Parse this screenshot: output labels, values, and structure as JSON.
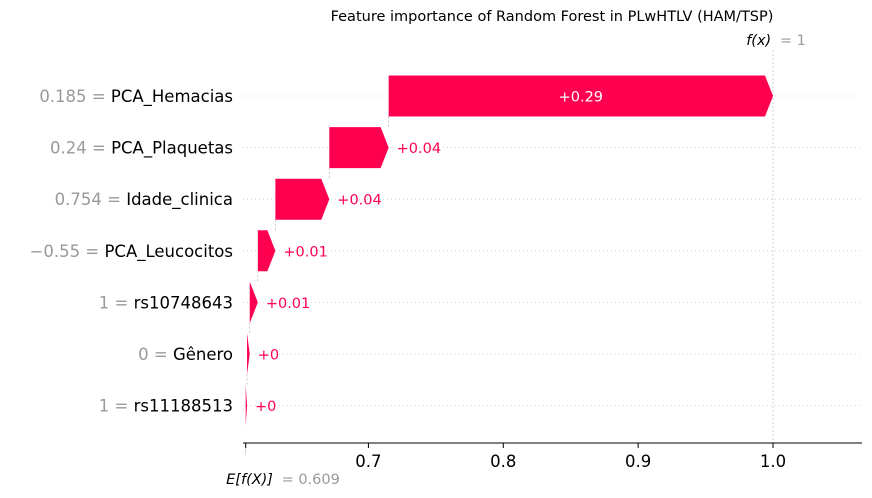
{
  "chart_data": {
    "type": "waterfall",
    "title": "Feature importance of Random Forest in PLwHTLV (HAM/TSP)",
    "base_value": 0.609,
    "base_value_label": "E[f(X)]",
    "base_value_text": "= 0.609",
    "output_value": 1,
    "output_value_label": "f(x)",
    "output_value_text": "= 1",
    "xlim": [
      0.607,
      1.066
    ],
    "xticks": [
      0.7,
      0.8,
      0.9,
      1.0
    ],
    "xtick_labels": [
      "0.7",
      "0.8",
      "0.9",
      "1.0"
    ],
    "positive_color": "#ff0051",
    "features": [
      {
        "value_text": "0.185",
        "name": "PCA_Hemacias",
        "contribution": 0.285,
        "label": "+0.29"
      },
      {
        "value_text": "0.24",
        "name": "PCA_Plaquetas",
        "contribution": 0.044,
        "label": "+0.04"
      },
      {
        "value_text": "0.754",
        "name": "Idade_clinica",
        "contribution": 0.04,
        "label": "+0.04"
      },
      {
        "value_text": "−0.55",
        "name": "PCA_Leucocitos",
        "contribution": 0.013,
        "label": "+0.01"
      },
      {
        "value_text": "1",
        "name": "rs10748643",
        "contribution": 0.006,
        "label": "+0.01"
      },
      {
        "value_text": "0",
        "name": "Gênero",
        "contribution": 0.002,
        "label": "+0"
      },
      {
        "value_text": "1",
        "name": "rs11188513",
        "contribution": 0.001,
        "label": "+0"
      }
    ]
  }
}
